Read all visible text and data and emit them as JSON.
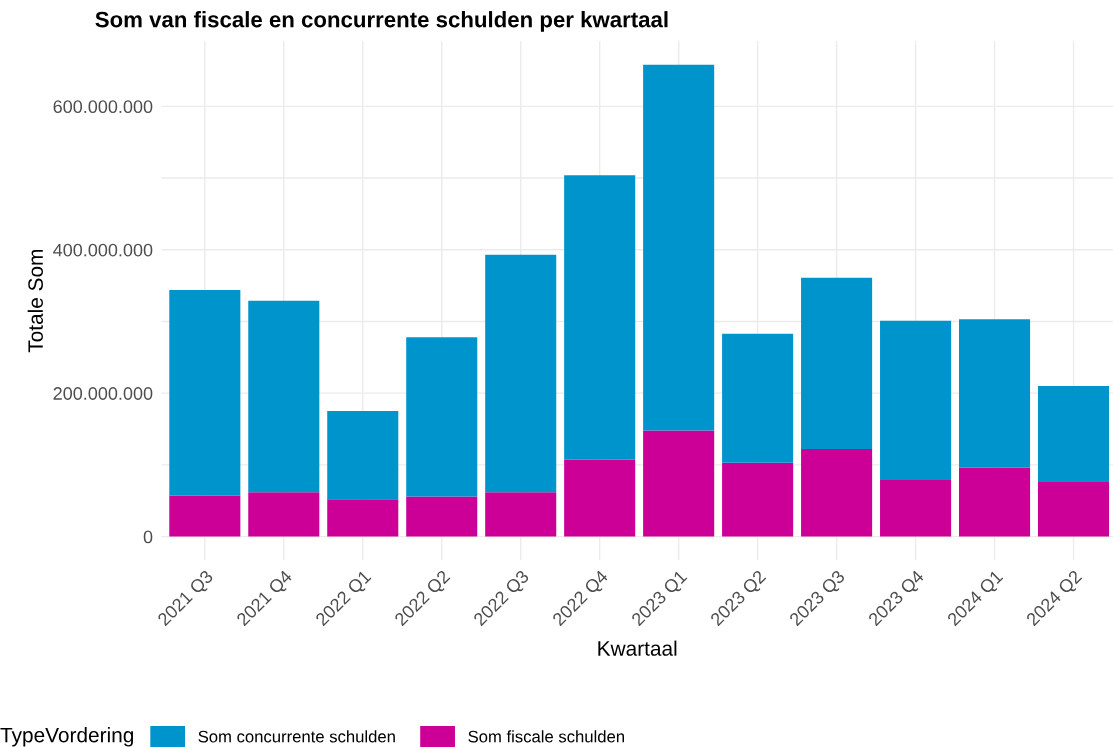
{
  "chart_data": {
    "type": "bar",
    "title": "Som van fiscale en concurrente schulden per kwartaal",
    "xlabel": "Kwartaal",
    "ylabel": "Totale Som",
    "legend_title": "TypeVordering",
    "categories": [
      "2021 Q3",
      "2021 Q4",
      "2022 Q1",
      "2022 Q2",
      "2022 Q3",
      "2022 Q4",
      "2023 Q1",
      "2023 Q2",
      "2023 Q3",
      "2023 Q4",
      "2024 Q1",
      "2024 Q2"
    ],
    "stacked": true,
    "series": [
      {
        "name": "Som fiscale schulden",
        "color": "#cc0096",
        "values": [
          57000000,
          62000000,
          52000000,
          56000000,
          62000000,
          107000000,
          148000000,
          103000000,
          122000000,
          79000000,
          96000000,
          76000000
        ]
      },
      {
        "name": "Som concurrente schulden",
        "color": "#0094cc",
        "values": [
          287000000,
          267000000,
          123000000,
          222000000,
          331000000,
          397000000,
          510000000,
          180000000,
          239000000,
          222000000,
          207000000,
          134000000
        ]
      }
    ],
    "ylim": [
      -33000000,
      691000000
    ],
    "yticks": [
      {
        "value": 0,
        "label": "0"
      },
      {
        "value": 100000000,
        "label": null
      },
      {
        "value": 200000000,
        "label": "200.000.000"
      },
      {
        "value": 300000000,
        "label": null
      },
      {
        "value": 400000000,
        "label": "400.000.000"
      },
      {
        "value": 500000000,
        "label": null
      },
      {
        "value": 600000000,
        "label": "600.000.000"
      }
    ],
    "grid": true,
    "legend": "bottom"
  }
}
